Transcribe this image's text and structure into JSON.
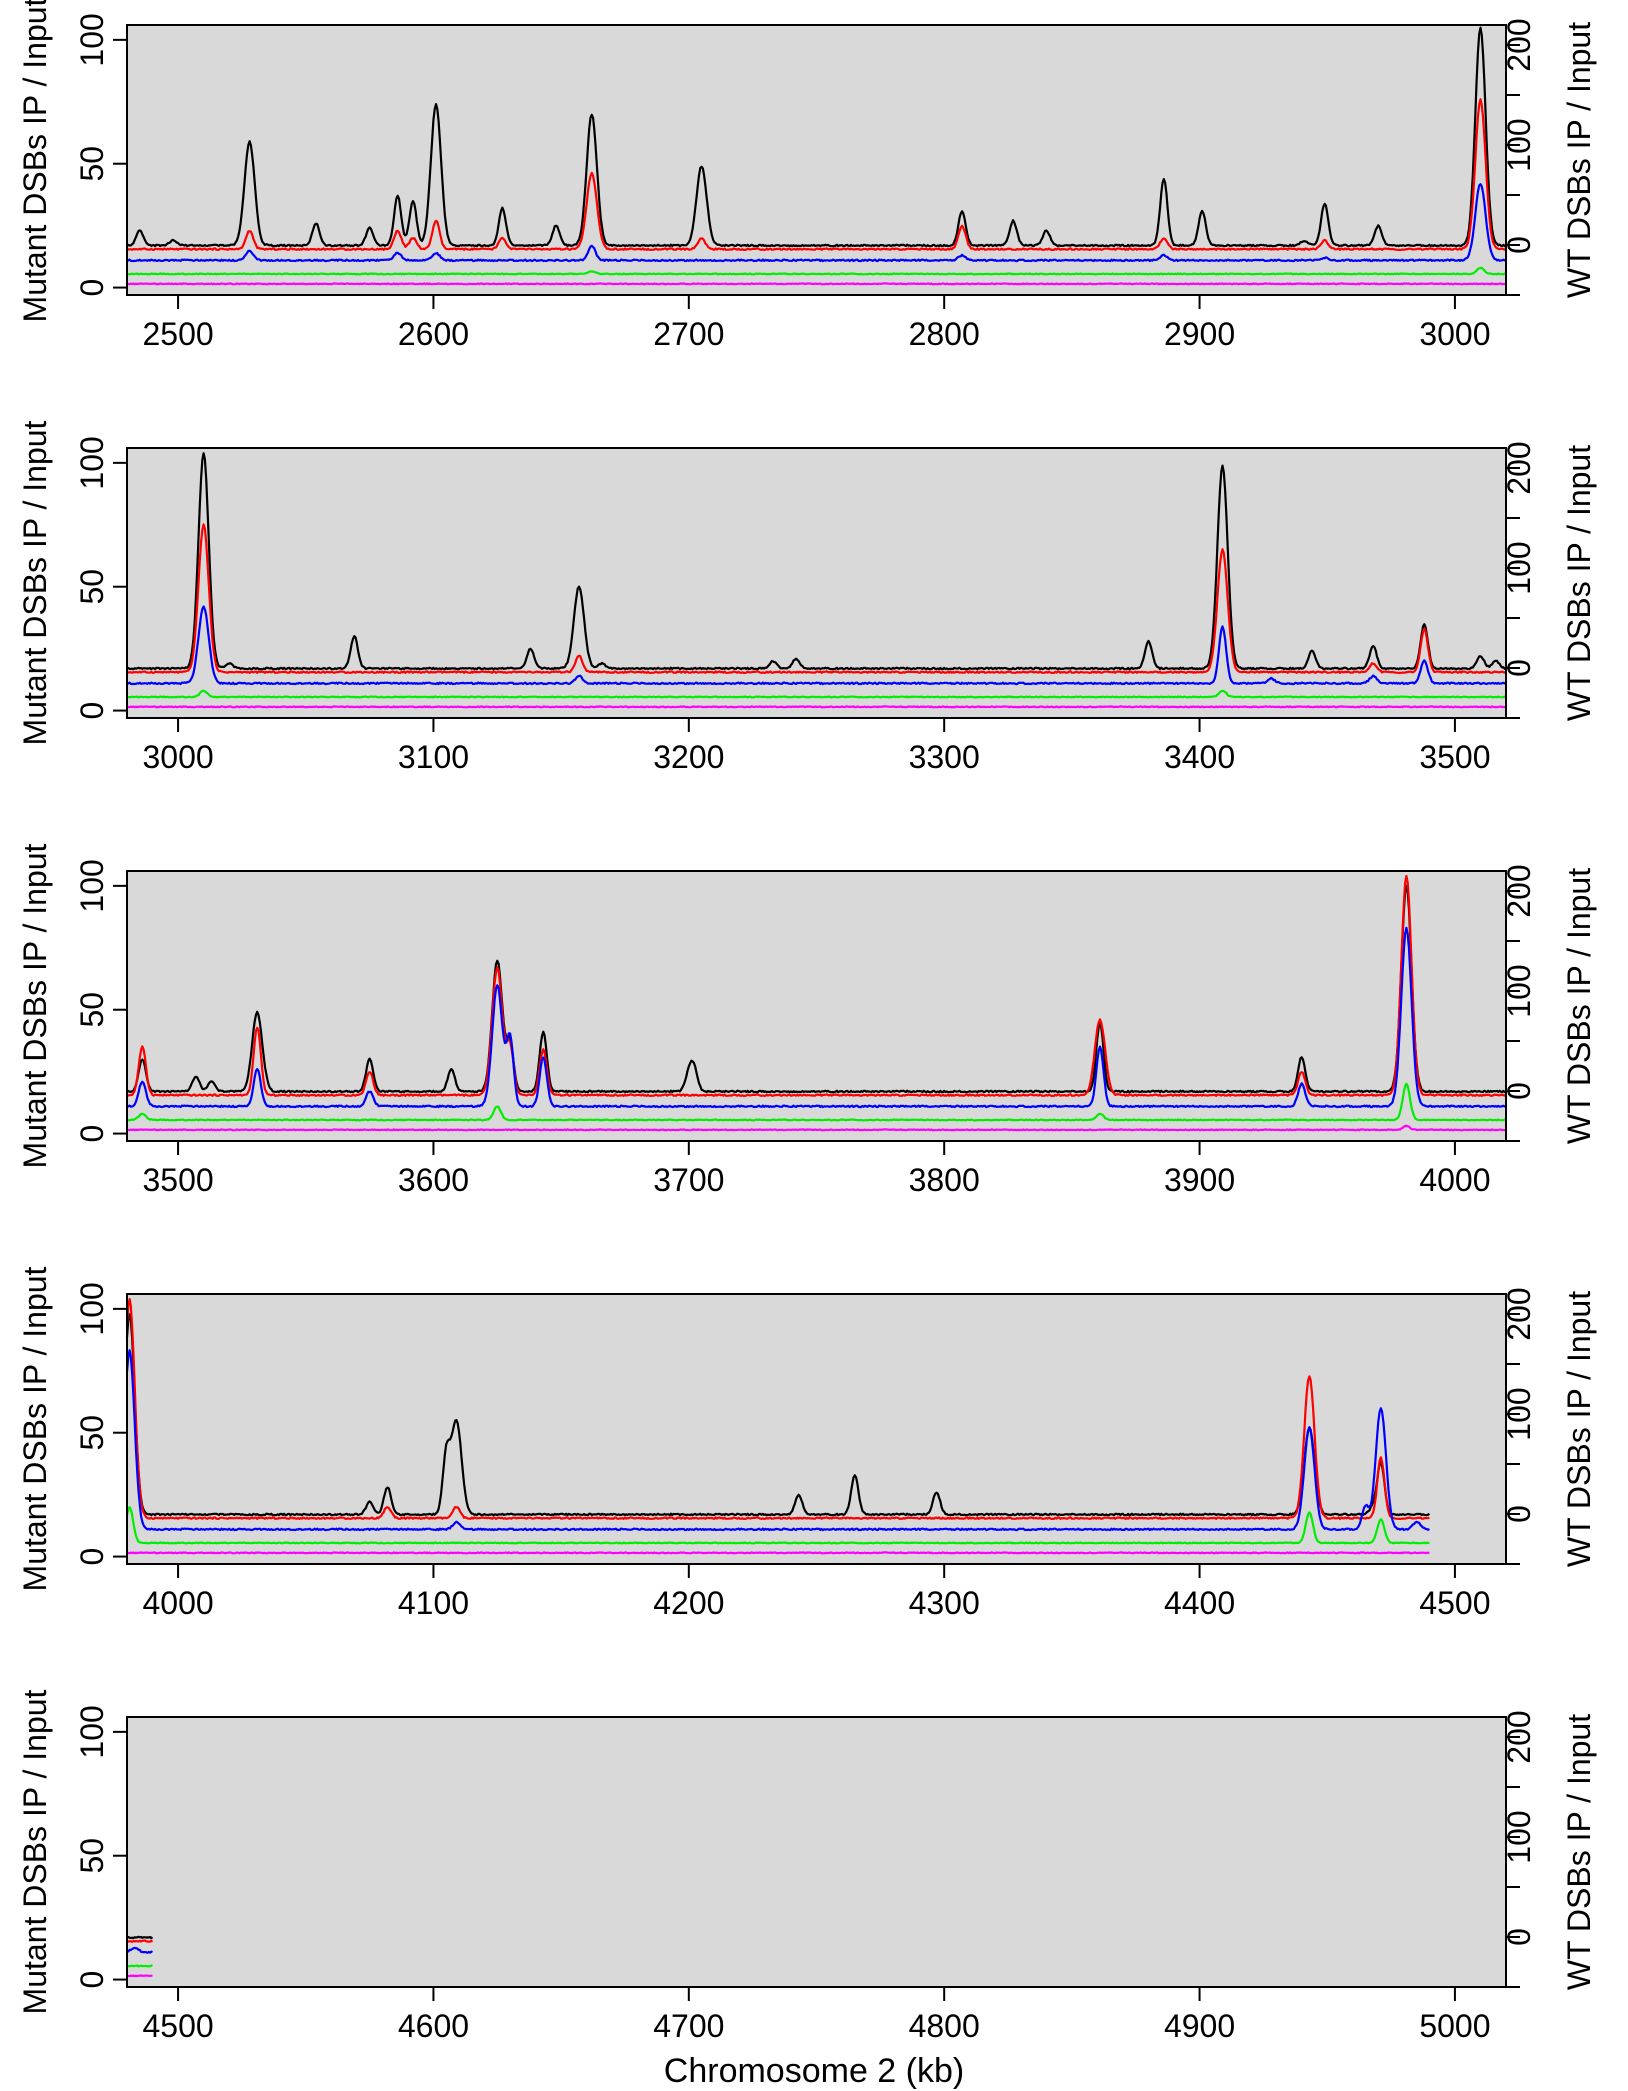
{
  "figure": {
    "xlabel": "Chromosome 2 (kb)",
    "left_ylabel": "Mutant DSBs IP / Input",
    "right_ylabel": "WT DSBs IP / Input"
  },
  "chart_data": [
    {
      "type": "line",
      "panel": 1,
      "xlim": [
        2480,
        3020
      ],
      "xticks": [
        2500,
        2600,
        2700,
        2800,
        2900,
        3000
      ],
      "left_ylim": [
        -3,
        106
      ],
      "left_yticks": [
        0,
        50,
        100
      ],
      "right_ylim": [
        -50,
        220
      ],
      "right_yticks": [
        0,
        100,
        200
      ],
      "grid": false,
      "background": "#d9d9d9",
      "series_note": "Five unlabeled traces: black, red, blue, green, magenta",
      "series": [
        {
          "color": "#000000",
          "baseline": 17,
          "peaks": [
            [
              2485,
              23
            ],
            [
              2498,
              19
            ],
            [
              2528,
              59
            ],
            [
              2554,
              26
            ],
            [
              2575,
              24
            ],
            [
              2586,
              37
            ],
            [
              2592,
              35
            ],
            [
              2601,
              74
            ],
            [
              2627,
              32
            ],
            [
              2648,
              25
            ],
            [
              2662,
              70
            ],
            [
              2705,
              49
            ],
            [
              2807,
              31
            ],
            [
              2827,
              27
            ],
            [
              2840,
              23
            ],
            [
              2886,
              44
            ],
            [
              2901,
              31
            ],
            [
              2941,
              19
            ],
            [
              2949,
              34
            ],
            [
              2970,
              25
            ],
            [
              3010,
              105
            ]
          ]
        },
        {
          "color": "#ff0000",
          "baseline": 15.5,
          "peaks": [
            [
              2528,
              23
            ],
            [
              2586,
              23
            ],
            [
              2592,
              20
            ],
            [
              2601,
              27
            ],
            [
              2627,
              20
            ],
            [
              2662,
              46
            ],
            [
              2705,
              20
            ],
            [
              2807,
              25
            ],
            [
              2886,
              20
            ],
            [
              2949,
              19
            ],
            [
              3010,
              76
            ]
          ]
        },
        {
          "color": "#0000ff",
          "baseline": 11,
          "peaks": [
            [
              2528,
              15
            ],
            [
              2586,
              14
            ],
            [
              2601,
              14
            ],
            [
              2662,
              17
            ],
            [
              2807,
              13
            ],
            [
              2886,
              13
            ],
            [
              2949,
              12
            ],
            [
              3010,
              42
            ]
          ]
        },
        {
          "color": "#00ee00",
          "baseline": 5.5,
          "peaks": [
            [
              2662,
              6.5
            ],
            [
              3010,
              8
            ]
          ]
        },
        {
          "color": "#ff00ff",
          "baseline": 1.5,
          "peaks": []
        }
      ]
    },
    {
      "type": "line",
      "panel": 2,
      "xlim": [
        2980,
        3520
      ],
      "xticks": [
        3000,
        3100,
        3200,
        3300,
        3400,
        3500
      ],
      "left_ylim": [
        -3,
        106
      ],
      "left_yticks": [
        0,
        50,
        100
      ],
      "right_ylim": [
        -50,
        220
      ],
      "right_yticks": [
        0,
        100,
        200
      ],
      "grid": false,
      "background": "#d9d9d9",
      "series": [
        {
          "color": "#000000",
          "baseline": 17,
          "peaks": [
            [
              3010,
              104
            ],
            [
              3020,
              19
            ],
            [
              3069,
              30
            ],
            [
              3138,
              25
            ],
            [
              3157,
              50
            ],
            [
              3166,
              19
            ],
            [
              3233,
              20
            ],
            [
              3242,
              21
            ],
            [
              3380,
              28
            ],
            [
              3409,
              99
            ],
            [
              3444,
              24
            ],
            [
              3468,
              26
            ],
            [
              3488,
              35
            ],
            [
              3510,
              22
            ],
            [
              3516,
              20
            ]
          ]
        },
        {
          "color": "#ff0000",
          "baseline": 15.5,
          "peaks": [
            [
              3010,
              75
            ],
            [
              3157,
              22
            ],
            [
              3409,
              65
            ],
            [
              3468,
              19
            ],
            [
              3488,
              33
            ]
          ]
        },
        {
          "color": "#0000ff",
          "baseline": 11,
          "peaks": [
            [
              3010,
              42
            ],
            [
              3157,
              14
            ],
            [
              3409,
              34
            ],
            [
              3428,
              13
            ],
            [
              3468,
              14
            ],
            [
              3488,
              20
            ]
          ]
        },
        {
          "color": "#00ee00",
          "baseline": 5.5,
          "peaks": [
            [
              3010,
              8
            ],
            [
              3409,
              8
            ]
          ]
        },
        {
          "color": "#ff00ff",
          "baseline": 1.5,
          "peaks": []
        }
      ]
    },
    {
      "type": "line",
      "panel": 3,
      "xlim": [
        3480,
        4020
      ],
      "xticks": [
        3500,
        3600,
        3700,
        3800,
        3900,
        4000
      ],
      "left_ylim": [
        -3,
        106
      ],
      "left_yticks": [
        0,
        50,
        100
      ],
      "right_ylim": [
        -50,
        220
      ],
      "right_yticks": [
        0,
        100,
        200
      ],
      "grid": false,
      "background": "#d9d9d9",
      "series": [
        {
          "color": "#000000",
          "baseline": 17,
          "peaks": [
            [
              3486,
              30
            ],
            [
              3507,
              23
            ],
            [
              3513,
              21
            ],
            [
              3531,
              49
            ],
            [
              3575,
              30
            ],
            [
              3607,
              26
            ],
            [
              3625,
              70
            ],
            [
              3630,
              36
            ],
            [
              3643,
              41
            ],
            [
              3700,
              24
            ],
            [
              3702,
              26
            ],
            [
              3861,
              45
            ],
            [
              3940,
              31
            ],
            [
              3981,
              100
            ]
          ]
        },
        {
          "color": "#ff0000",
          "baseline": 15.5,
          "peaks": [
            [
              3486,
              35
            ],
            [
              3531,
              43
            ],
            [
              3575,
              25
            ],
            [
              3625,
              67
            ],
            [
              3630,
              35
            ],
            [
              3643,
              34
            ],
            [
              3861,
              46
            ],
            [
              3940,
              25
            ],
            [
              3981,
              104
            ]
          ]
        },
        {
          "color": "#0000ff",
          "baseline": 11,
          "peaks": [
            [
              3486,
              21
            ],
            [
              3531,
              26
            ],
            [
              3575,
              17
            ],
            [
              3625,
              60
            ],
            [
              3630,
              38
            ],
            [
              3643,
              31
            ],
            [
              3861,
              35
            ],
            [
              3940,
              20
            ],
            [
              3981,
              83
            ]
          ]
        },
        {
          "color": "#00ee00",
          "baseline": 5.5,
          "peaks": [
            [
              3486,
              8
            ],
            [
              3625,
              11
            ],
            [
              3861,
              8
            ],
            [
              3981,
              20
            ]
          ]
        },
        {
          "color": "#ff00ff",
          "baseline": 1.5,
          "peaks": [
            [
              3981,
              3
            ]
          ]
        }
      ]
    },
    {
      "type": "line",
      "panel": 4,
      "xlim": [
        3980,
        4520
      ],
      "xticks": [
        4000,
        4100,
        4200,
        4300,
        4400,
        4500
      ],
      "x_end": 4490,
      "left_ylim": [
        -3,
        106
      ],
      "left_yticks": [
        0,
        50,
        100
      ],
      "right_ylim": [
        -50,
        220
      ],
      "right_yticks": [
        0,
        100,
        200
      ],
      "grid": false,
      "background": "#d9d9d9",
      "series": [
        {
          "color": "#000000",
          "baseline": 17,
          "peaks": [
            [
              3981,
              98
            ],
            [
              4075,
              22
            ],
            [
              4082,
              28
            ],
            [
              4105,
              40
            ],
            [
              4109,
              55
            ],
            [
              4243,
              25
            ],
            [
              4265,
              33
            ],
            [
              4297,
              26
            ],
            [
              4443,
              52
            ],
            [
              4468,
              20
            ],
            [
              4471,
              38
            ]
          ]
        },
        {
          "color": "#ff0000",
          "baseline": 15.5,
          "peaks": [
            [
              3981,
              104
            ],
            [
              4082,
              20
            ],
            [
              4109,
              20
            ],
            [
              4443,
              73
            ],
            [
              4471,
              40
            ]
          ]
        },
        {
          "color": "#0000ff",
          "baseline": 11,
          "peaks": [
            [
              3981,
              83
            ],
            [
              4109,
              14
            ],
            [
              4443,
              52
            ],
            [
              4465,
              20
            ],
            [
              4471,
              60
            ],
            [
              4485,
              14
            ]
          ]
        },
        {
          "color": "#00ee00",
          "baseline": 5.5,
          "peaks": [
            [
              3981,
              20
            ],
            [
              4443,
              18
            ],
            [
              4471,
              15
            ]
          ]
        },
        {
          "color": "#ff00ff",
          "baseline": 1.5,
          "peaks": []
        }
      ]
    },
    {
      "type": "line",
      "panel": 5,
      "xlim": [
        4480,
        5020
      ],
      "xticks": [
        4500,
        4600,
        4700,
        4800,
        4900,
        5000
      ],
      "x_end": 4490,
      "left_ylim": [
        -3,
        106
      ],
      "left_yticks": [
        0,
        50,
        100
      ],
      "right_ylim": [
        -50,
        220
      ],
      "right_yticks": [
        0,
        100,
        200
      ],
      "grid": false,
      "background": "#d9d9d9",
      "series": [
        {
          "color": "#000000",
          "baseline": 17,
          "peaks": []
        },
        {
          "color": "#ff0000",
          "baseline": 15.5,
          "peaks": []
        },
        {
          "color": "#0000ff",
          "baseline": 11,
          "peaks": [
            [
              4483,
              13
            ]
          ]
        },
        {
          "color": "#00ee00",
          "baseline": 5.5,
          "peaks": []
        },
        {
          "color": "#ff00ff",
          "baseline": 1.5,
          "peaks": []
        }
      ]
    }
  ]
}
